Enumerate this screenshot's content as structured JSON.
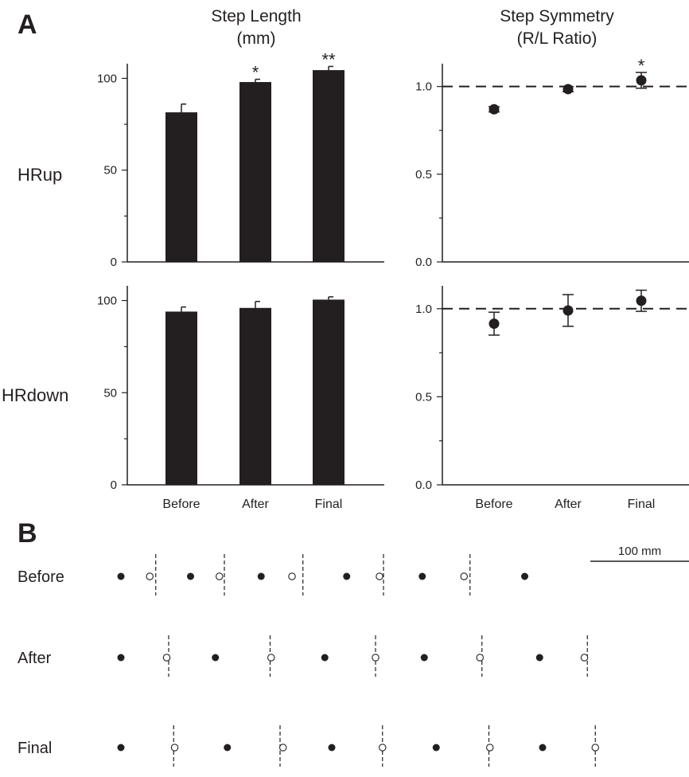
{
  "panels": {
    "a": "A",
    "b": "B"
  },
  "column_titles": {
    "step_length": [
      "Step Length",
      "(mm)"
    ],
    "step_symmetry": [
      "Step Symmetry",
      "(R/L Ratio)"
    ]
  },
  "row_labels": {
    "hrup": "HRup",
    "hrdown": "HRdown"
  },
  "chart_data": [
    {
      "id": "hrup-step-length",
      "type": "bar",
      "row": "HRup",
      "column": "Step Length (mm)",
      "categories": [
        "Before",
        "After",
        "Final"
      ],
      "values": [
        81.5,
        98,
        104.5
      ],
      "error": [
        4.5,
        1.5,
        2
      ],
      "significance": [
        "",
        "*",
        "**"
      ],
      "ylim": [
        0,
        108
      ],
      "yticks": [
        0,
        50,
        100
      ],
      "show_category_labels": false,
      "color": "#231f20"
    },
    {
      "id": "hrup-step-symmetry",
      "type": "scatter",
      "row": "HRup",
      "column": "Step Symmetry (R/L Ratio)",
      "categories": [
        "Before",
        "After",
        "Final"
      ],
      "values": [
        0.87,
        0.985,
        1.035
      ],
      "error": [
        0.015,
        0.015,
        0.045
      ],
      "significance": [
        "",
        "",
        "*"
      ],
      "ylim": [
        0,
        1.13
      ],
      "yticks": [
        0.0,
        0.5,
        1.0
      ],
      "reference_line": 1.0,
      "show_category_labels": false
    },
    {
      "id": "hrdown-step-length",
      "type": "bar",
      "row": "HRdown",
      "column": "Step Length (mm)",
      "categories": [
        "Before",
        "After",
        "Final"
      ],
      "values": [
        94,
        96,
        100.5
      ],
      "error": [
        2.5,
        3.5,
        1.5
      ],
      "significance": [
        "",
        "",
        ""
      ],
      "ylim": [
        0,
        108
      ],
      "yticks": [
        0,
        50,
        100
      ],
      "show_category_labels": true,
      "color": "#231f20"
    },
    {
      "id": "hrdown-step-symmetry",
      "type": "scatter",
      "row": "HRdown",
      "column": "Step Symmetry (R/L Ratio)",
      "categories": [
        "Before",
        "After",
        "Final"
      ],
      "values": [
        0.915,
        0.99,
        1.045
      ],
      "error": [
        0.065,
        0.09,
        0.06
      ],
      "significance": [
        "",
        "",
        ""
      ],
      "ylim": [
        0,
        1.13
      ],
      "yticks": [
        0.0,
        0.5,
        1.0
      ],
      "reference_line": 1.0,
      "show_category_labels": true
    }
  ],
  "footprints": {
    "scale_label": "100 mm",
    "rows": [
      {
        "label": "Before",
        "filled_mm": [
          0,
          70,
          141,
          227,
          303,
          406
        ],
        "open_mm": [
          29,
          99,
          172,
          260,
          345
        ],
        "dash_mm": [
          35,
          104,
          183,
          264,
          351
        ]
      },
      {
        "label": "After",
        "filled_mm": [
          0,
          95,
          205,
          305,
          421
        ],
        "open_mm": [
          46,
          151,
          256,
          361,
          466
        ],
        "dash_mm": [
          48,
          150,
          256,
          363,
          469
        ]
      },
      {
        "label": "Final",
        "filled_mm": [
          0,
          107,
          212,
          317,
          424
        ],
        "open_mm": [
          54,
          163,
          263,
          371,
          477
        ],
        "dash_mm": [
          53,
          160,
          263,
          370,
          477
        ]
      }
    ]
  }
}
